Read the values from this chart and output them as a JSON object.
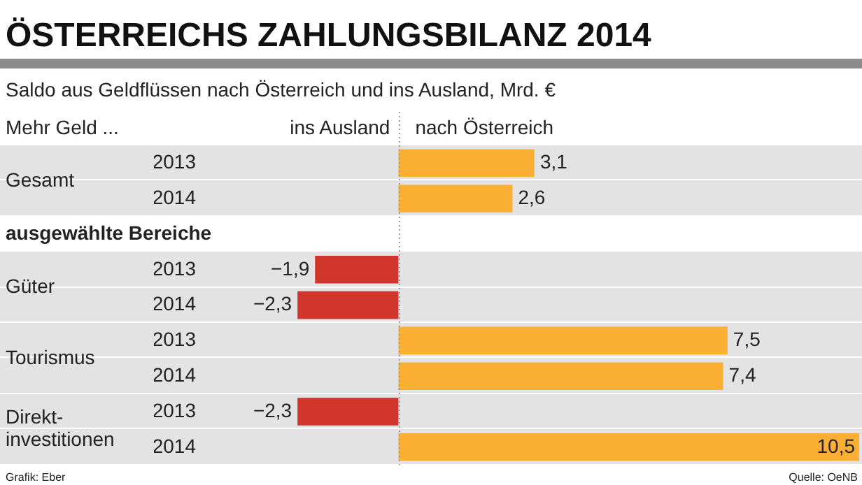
{
  "chart_data": {
    "type": "bar",
    "orientation": "horizontal",
    "title": "ÖSTERREICHS ZAHLUNGSBILANZ 2014",
    "subtitle": "Saldo aus Geldflüssen nach Österreich und ins Ausland, Mrd. €",
    "categories": [
      "2013",
      "2014",
      null,
      "2013",
      "2014",
      "2013",
      "2014",
      "2013",
      "2014"
    ],
    "values": [
      3.1,
      2.6,
      null,
      -1.9,
      -2.3,
      7.5,
      7.4,
      -2.3,
      10.5
    ],
    "value_labels": [
      "3,1",
      "2,6",
      null,
      "−1,9",
      "−2,3",
      "7,5",
      "7,4",
      "−2,3",
      "10,5"
    ],
    "colors": [
      "#fbb034",
      "#fbb034",
      "#fbb034",
      "#d0352b",
      "#d0352b",
      "#fbb034",
      "#fbb034",
      "#d0352b",
      "#fbb034"
    ],
    "ref_lines": [
      {
        "axis": "x",
        "value": 0,
        "color": "#9a9a9a",
        "line_style": "dotted"
      }
    ],
    "annotations": [
      "Mehr Geld ...",
      "ins Ausland",
      "nach Österreich",
      "Gesamt",
      "ausgewählte Bereiche",
      "Güter",
      "Tourismus",
      "Direkt-\ninvestitionen",
      "Grafik: Eber",
      "Quelle: OeNB"
    ]
  }
}
